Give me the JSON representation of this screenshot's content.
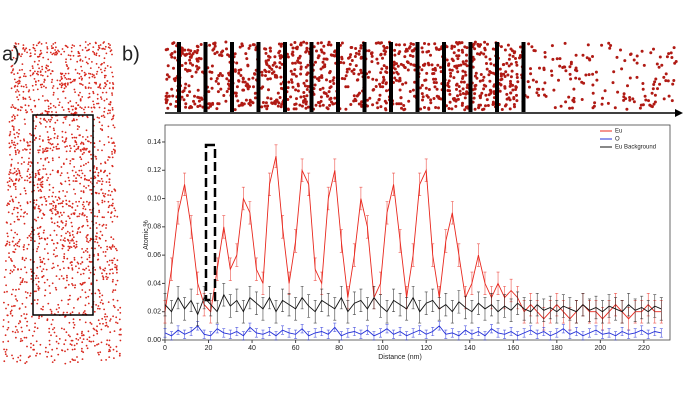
{
  "panel_labels": [
    "a)",
    "b)"
  ],
  "chart_data": {
    "type": "line",
    "x_label": "Distance (nm)",
    "y_label": "Atomic %",
    "x": [
      0,
      3,
      6,
      9,
      12,
      15,
      18,
      21,
      24,
      27,
      30,
      33,
      36,
      39,
      42,
      45,
      48,
      51,
      54,
      57,
      60,
      63,
      66,
      69,
      72,
      75,
      78,
      81,
      84,
      87,
      90,
      93,
      96,
      99,
      102,
      105,
      108,
      111,
      114,
      117,
      120,
      123,
      126,
      129,
      132,
      135,
      138,
      141,
      144,
      147,
      150,
      153,
      156,
      159,
      162,
      165,
      168,
      171,
      174,
      177,
      180,
      183,
      186,
      189,
      192,
      195,
      198,
      201,
      204,
      207,
      210,
      213,
      216,
      219,
      222,
      225,
      228
    ],
    "series": [
      {
        "name": "Eu",
        "color": "#e8281e",
        "error": 0.008,
        "values": [
          0.02,
          0.05,
          0.09,
          0.11,
          0.08,
          0.04,
          0.025,
          0.02,
          0.05,
          0.08,
          0.05,
          0.06,
          0.1,
          0.09,
          0.05,
          0.04,
          0.11,
          0.13,
          0.08,
          0.04,
          0.07,
          0.12,
          0.11,
          0.05,
          0.04,
          0.1,
          0.12,
          0.07,
          0.03,
          0.06,
          0.1,
          0.08,
          0.03,
          0.04,
          0.09,
          0.11,
          0.07,
          0.03,
          0.06,
          0.11,
          0.12,
          0.06,
          0.03,
          0.07,
          0.09,
          0.06,
          0.03,
          0.04,
          0.06,
          0.04,
          0.03,
          0.04,
          0.03,
          0.035,
          0.03,
          0.02,
          0.025,
          0.02,
          0.015,
          0.02,
          0.025,
          0.02,
          0.015,
          0.02,
          0.025,
          0.02,
          0.02,
          0.015,
          0.02,
          0.025,
          0.02,
          0.015,
          0.02,
          0.02,
          0.025,
          0.02,
          0.02
        ]
      },
      {
        "name": "O",
        "color": "#2430d8",
        "error": 0.003,
        "values": [
          0.005,
          0.003,
          0.007,
          0.004,
          0.006,
          0.01,
          0.004,
          0.003,
          0.008,
          0.005,
          0.004,
          0.006,
          0.003,
          0.009,
          0.005,
          0.004,
          0.006,
          0.003,
          0.007,
          0.005,
          0.004,
          0.008,
          0.003,
          0.005,
          0.006,
          0.004,
          0.009,
          0.003,
          0.005,
          0.006,
          0.004,
          0.007,
          0.003,
          0.005,
          0.008,
          0.004,
          0.006,
          0.003,
          0.005,
          0.007,
          0.004,
          0.006,
          0.01,
          0.004,
          0.005,
          0.003,
          0.007,
          0.004,
          0.006,
          0.003,
          0.008,
          0.005,
          0.004,
          0.006,
          0.003,
          0.005,
          0.007,
          0.004,
          0.006,
          0.003,
          0.005,
          0.008,
          0.004,
          0.006,
          0.003,
          0.005,
          0.007,
          0.004,
          0.005,
          0.003,
          0.006,
          0.004,
          0.005,
          0.007,
          0.004,
          0.006,
          0.005
        ]
      },
      {
        "name": "Eu Background",
        "color": "#111111",
        "error": 0.008,
        "values": [
          0.025,
          0.02,
          0.03,
          0.022,
          0.028,
          0.018,
          0.03,
          0.025,
          0.02,
          0.032,
          0.024,
          0.028,
          0.02,
          0.03,
          0.026,
          0.022,
          0.03,
          0.02,
          0.028,
          0.025,
          0.022,
          0.03,
          0.024,
          0.02,
          0.028,
          0.025,
          0.022,
          0.03,
          0.02,
          0.026,
          0.028,
          0.022,
          0.03,
          0.024,
          0.02,
          0.028,
          0.025,
          0.022,
          0.03,
          0.02,
          0.026,
          0.028,
          0.022,
          0.025,
          0.02,
          0.027,
          0.023,
          0.02,
          0.026,
          0.022,
          0.025,
          0.02,
          0.024,
          0.021,
          0.026,
          0.022,
          0.02,
          0.025,
          0.021,
          0.023,
          0.02,
          0.024,
          0.022,
          0.02,
          0.025,
          0.021,
          0.023,
          0.02,
          0.024,
          0.022,
          0.02,
          0.025,
          0.021,
          0.023,
          0.02,
          0.024,
          0.022
        ]
      }
    ],
    "xlim": [
      0,
      232
    ],
    "ylim": [
      0,
      0.152
    ],
    "xticks": [
      0,
      20,
      40,
      60,
      80,
      100,
      120,
      140,
      160,
      180,
      200,
      220
    ],
    "yticks": [
      {
        "value": 0,
        "label": "0.00"
      },
      {
        "value": 0.02,
        "label": "0.02"
      },
      {
        "value": 0.04,
        "label": "0.04"
      },
      {
        "value": 0.06,
        "label": "0.06"
      },
      {
        "value": 0.08,
        "label": "0.08"
      },
      {
        "value": 0.1,
        "label": "0.10"
      },
      {
        "value": 0.12,
        "label": "0.12"
      },
      {
        "value": 0.14,
        "label": "0.14"
      }
    ],
    "legend": "upper-right"
  }
}
